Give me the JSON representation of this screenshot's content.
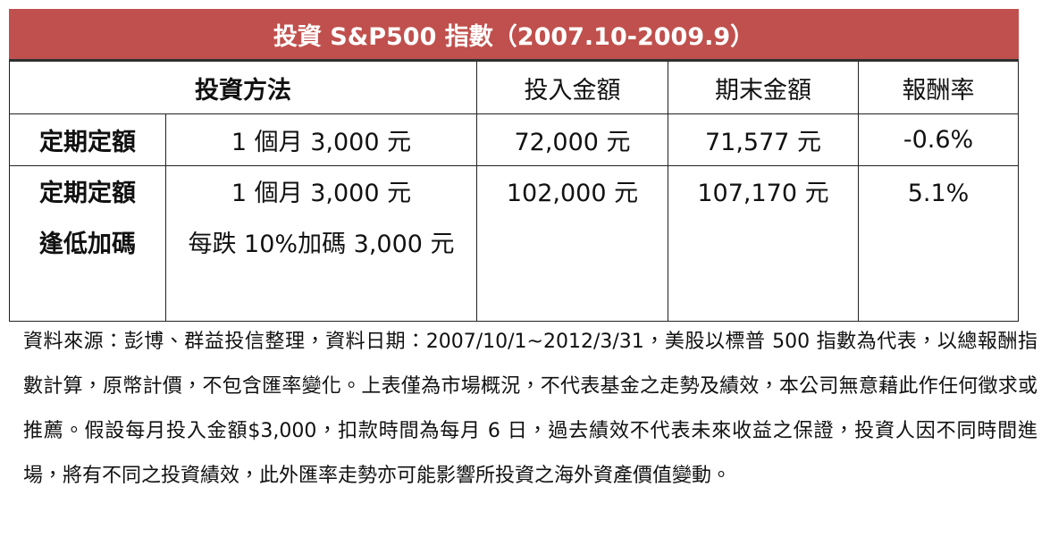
{
  "title": "投資 S&P500 指數（2007.10-2009.9）",
  "table": {
    "header": [
      "投資方法",
      "投入金額",
      "期末金額",
      "報酬率"
    ],
    "rows": [
      {
        "method": [
          "定期定額"
        ],
        "plan": [
          "1 個月 3,000 元"
        ],
        "invested": "72,000 元",
        "final": "71,577 元",
        "return": "-0.6%"
      },
      {
        "method": [
          "定期定額",
          "逢低加碼"
        ],
        "plan": [
          "1 個月 3,000 元",
          "每跌 10%加碼 3,000 元"
        ],
        "invested": "102,000 元",
        "final": "107,170 元",
        "return": "5.1%"
      }
    ]
  },
  "note": "資料來源：彭博、群益投信整理，資料日期：2007/10/1~2012/3/31，美股以標普 500 指數為代表，以總報酬指數計算，原幣計價，不包含匯率變化。上表僅為市場概況，不代表基金之走勢及績效，本公司無意藉此作任何徵求或推薦。假設每月投入金額$3,000，扣款時間為每月 6 日，過去績效不代表未來收益之保證，投資人因不同時間進場，將有不同之投資績效，此外匯率走勢亦可能影響所投資之海外資產價值變動。"
}
